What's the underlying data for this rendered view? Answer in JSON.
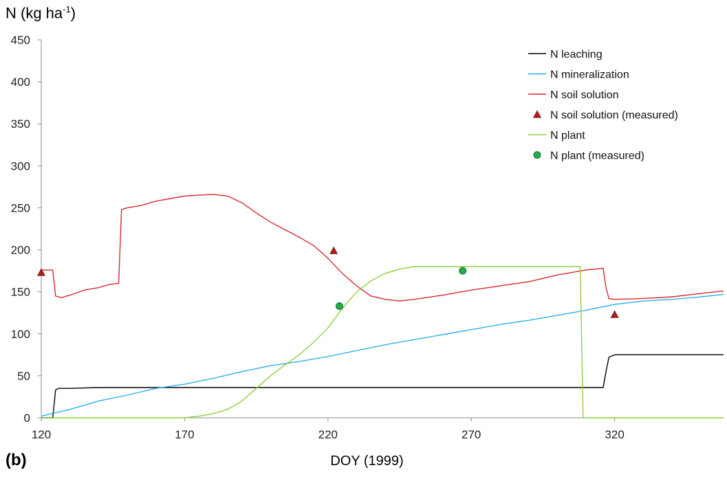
{
  "chart_data": {
    "type": "line",
    "ylabel": {
      "prefix": "N (kg ha",
      "sup": "-1",
      "suffix": ")"
    },
    "xlabel": "DOY (1999)",
    "panel_label": "(b)",
    "xlim": [
      120,
      358
    ],
    "ylim": [
      0,
      450
    ],
    "xticks": [
      120,
      170,
      220,
      270,
      320
    ],
    "yticks": [
      0,
      50,
      100,
      150,
      200,
      250,
      300,
      350,
      400,
      450
    ],
    "grid": false,
    "legend_position": "top-right",
    "series": [
      {
        "name": "N leaching",
        "kind": "line",
        "color": "#000000",
        "x": [
          120,
          124,
          125,
          126,
          130,
          140,
          160,
          200,
          250,
          300,
          316,
          317,
          318,
          320,
          330,
          358
        ],
        "y": [
          0,
          0,
          33,
          35,
          35,
          36,
          36,
          36,
          36,
          36,
          36,
          55,
          72,
          75,
          75,
          75
        ]
      },
      {
        "name": "N mineralization",
        "kind": "line",
        "color": "#2bb0e8",
        "x": [
          120,
          130,
          140,
          150,
          160,
          170,
          180,
          190,
          200,
          210,
          220,
          230,
          240,
          250,
          260,
          270,
          280,
          290,
          300,
          310,
          320,
          330,
          340,
          350,
          358
        ],
        "y": [
          2,
          10,
          20,
          27,
          35,
          40,
          47,
          55,
          62,
          67,
          73,
          80,
          87,
          93,
          99,
          105,
          111,
          116,
          122,
          128,
          135,
          139,
          141,
          144,
          147
        ]
      },
      {
        "name": "N soil solution",
        "kind": "line",
        "color": "#d7282f",
        "x": [
          120,
          122,
          124,
          125,
          127,
          130,
          135,
          140,
          144,
          147,
          148,
          150,
          155,
          160,
          165,
          170,
          175,
          180,
          185,
          190,
          195,
          200,
          205,
          210,
          215,
          220,
          225,
          230,
          235,
          240,
          245,
          250,
          260,
          270,
          280,
          290,
          300,
          310,
          316,
          317,
          318,
          320,
          330,
          340,
          350,
          358
        ],
        "y": [
          176,
          176,
          176,
          145,
          143,
          146,
          152,
          155,
          159,
          160,
          248,
          250,
          253,
          258,
          261,
          264,
          265,
          266,
          264,
          256,
          244,
          233,
          224,
          215,
          205,
          190,
          172,
          157,
          145,
          141,
          139,
          141,
          146,
          152,
          157,
          162,
          170,
          176,
          178,
          155,
          142,
          141,
          142,
          144,
          148,
          151
        ]
      },
      {
        "name": "N soil solution (measured)",
        "kind": "triangle",
        "color": "#b01a1a",
        "x": [
          120,
          222,
          320
        ],
        "y": [
          173,
          199,
          123
        ]
      },
      {
        "name": "N plant",
        "kind": "line",
        "color": "#8ccf3c",
        "x": [
          120,
          170,
          175,
          180,
          185,
          190,
          195,
          200,
          205,
          210,
          215,
          220,
          225,
          230,
          235,
          240,
          245,
          250,
          255,
          260,
          270,
          280,
          290,
          300,
          308,
          309,
          310,
          358
        ],
        "y": [
          0,
          0,
          2,
          5,
          10,
          20,
          35,
          50,
          63,
          75,
          90,
          107,
          130,
          150,
          163,
          172,
          177,
          180,
          180,
          180,
          180,
          180,
          180,
          180,
          180,
          0,
          0,
          0
        ]
      },
      {
        "name": "N plant (measured)",
        "kind": "circle",
        "color": "#1fae4a",
        "x": [
          224,
          267
        ],
        "y": [
          133,
          175
        ]
      }
    ]
  }
}
